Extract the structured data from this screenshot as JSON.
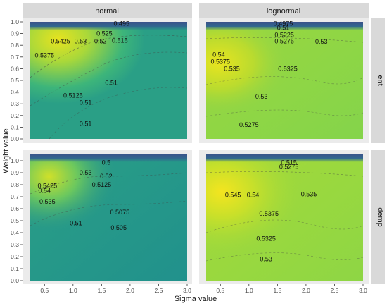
{
  "chart_data": {
    "type": "contour",
    "xlabel": "Sigma value",
    "ylabel": "Weight value",
    "x_ticks": [
      0.5,
      1.0,
      1.5,
      2.0,
      2.5,
      3.0
    ],
    "y_ticks": [
      0.0,
      0.1,
      0.2,
      0.3,
      0.4,
      0.5,
      0.6,
      0.7,
      0.8,
      0.9,
      1.0
    ],
    "xlim": [
      0.25,
      3.0
    ],
    "ylim": [
      0.0,
      1.0
    ],
    "facet_columns": [
      "normal",
      "lognormal"
    ],
    "facet_rows": [
      "ent",
      "demp"
    ],
    "colors": {
      "yellow": "#f3e522",
      "yellow_green": "#b5dd2b",
      "green": "#84d44b",
      "light_green": "#9bd83e",
      "teal_green": "#35b779",
      "teal": "#2a9f86",
      "teal_dark": "#21918c",
      "blue": "#3b528b",
      "navy": "#31688e",
      "strip_bg": "#d9d9d9",
      "panel_bg": "#ebebeb"
    },
    "panels": [
      {
        "column": "normal",
        "row": "ent",
        "labels": [
          {
            "text": "0.495",
            "x": 1.85,
            "y": 0.985
          },
          {
            "text": "0.525",
            "x": 1.55,
            "y": 0.9
          },
          {
            "text": "0.5425",
            "x": 0.78,
            "y": 0.835
          },
          {
            "text": "0.53",
            "x": 1.13,
            "y": 0.835
          },
          {
            "text": "0.52",
            "x": 1.48,
            "y": 0.835
          },
          {
            "text": "0.515",
            "x": 1.82,
            "y": 0.84
          },
          {
            "text": "0.5375",
            "x": 0.5,
            "y": 0.715
          },
          {
            "text": "0.51",
            "x": 1.67,
            "y": 0.48
          },
          {
            "text": "0.5125",
            "x": 1.0,
            "y": 0.37
          },
          {
            "text": "0.51",
            "x": 1.22,
            "y": 0.31
          },
          {
            "text": "0.51",
            "x": 1.22,
            "y": 0.13
          }
        ]
      },
      {
        "column": "lognormal",
        "row": "ent",
        "labels": [
          {
            "text": "0.4975",
            "x": 1.6,
            "y": 0.985
          },
          {
            "text": "0.51",
            "x": 1.6,
            "y": 0.95
          },
          {
            "text": "0.5225",
            "x": 1.62,
            "y": 0.89
          },
          {
            "text": "0.5275",
            "x": 1.62,
            "y": 0.835
          },
          {
            "text": "0.53",
            "x": 2.27,
            "y": 0.83
          },
          {
            "text": "0.54",
            "x": 0.47,
            "y": 0.72
          },
          {
            "text": "0.5375",
            "x": 0.5,
            "y": 0.66
          },
          {
            "text": "0.535",
            "x": 0.7,
            "y": 0.6
          },
          {
            "text": "0.5325",
            "x": 1.68,
            "y": 0.6
          },
          {
            "text": "0.53",
            "x": 1.22,
            "y": 0.36
          },
          {
            "text": "0.5275",
            "x": 1.0,
            "y": 0.12
          }
        ]
      },
      {
        "column": "normal",
        "row": "demp",
        "labels": [
          {
            "text": "0.5",
            "x": 1.58,
            "y": 0.985
          },
          {
            "text": "0.53",
            "x": 1.22,
            "y": 0.9
          },
          {
            "text": "0.52",
            "x": 1.58,
            "y": 0.87
          },
          {
            "text": "0.5425",
            "x": 0.55,
            "y": 0.79
          },
          {
            "text": "0.54",
            "x": 0.5,
            "y": 0.75
          },
          {
            "text": "0.5125",
            "x": 1.5,
            "y": 0.8
          },
          {
            "text": "0.535",
            "x": 0.55,
            "y": 0.66
          },
          {
            "text": "0.5075",
            "x": 1.82,
            "y": 0.57
          },
          {
            "text": "0.51",
            "x": 1.05,
            "y": 0.48
          },
          {
            "text": "0.505",
            "x": 1.8,
            "y": 0.44
          }
        ]
      },
      {
        "column": "lognormal",
        "row": "demp",
        "labels": [
          {
            "text": "0.515",
            "x": 1.7,
            "y": 0.985
          },
          {
            "text": "0.5275",
            "x": 1.7,
            "y": 0.95
          },
          {
            "text": "0.545",
            "x": 0.72,
            "y": 0.715
          },
          {
            "text": "0.54",
            "x": 1.07,
            "y": 0.715
          },
          {
            "text": "0.535",
            "x": 2.05,
            "y": 0.72
          },
          {
            "text": "0.5375",
            "x": 1.35,
            "y": 0.56
          },
          {
            "text": "0.5325",
            "x": 1.3,
            "y": 0.35
          },
          {
            "text": "0.53",
            "x": 1.3,
            "y": 0.18
          }
        ]
      }
    ]
  }
}
